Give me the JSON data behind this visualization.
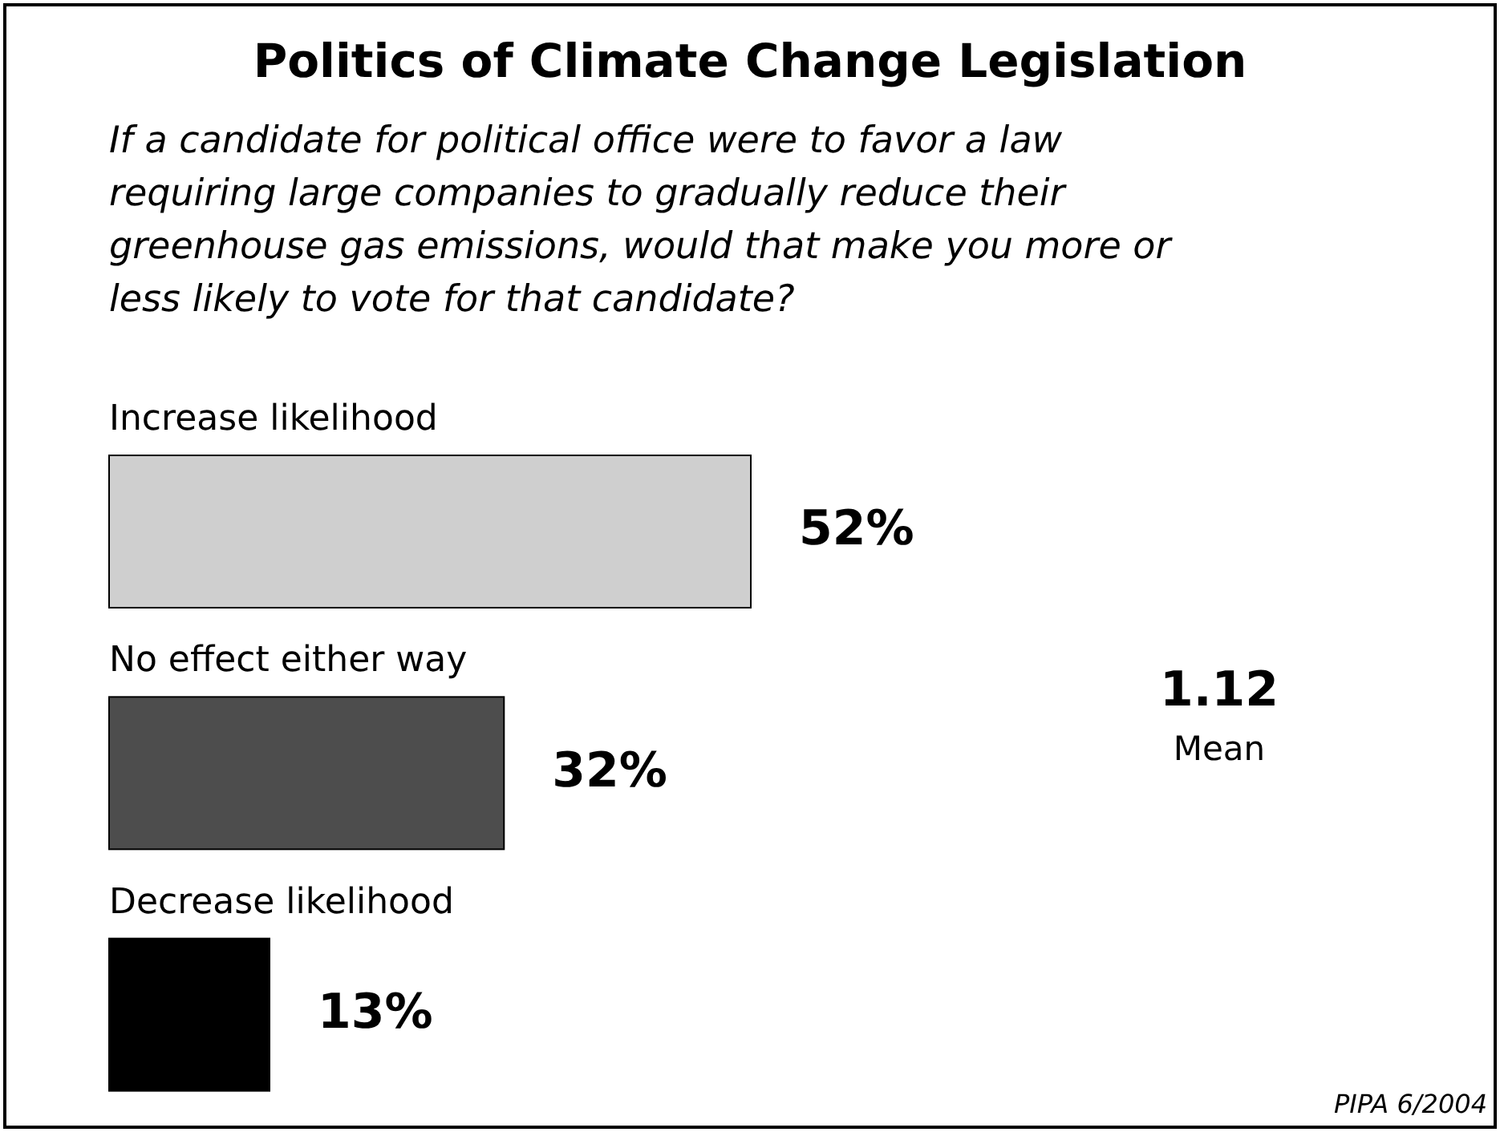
{
  "chart_data": {
    "type": "bar",
    "orientation": "horizontal",
    "title": "Politics of Climate Change Legislation",
    "subtitle": "If a candidate for political office were to favor a law requiring large companies to gradually reduce their greenhouse gas emissions, would that make you more or less likely to vote for that candidate?",
    "categories": [
      "Increase likelihood",
      "No effect either way",
      "Decrease likelihood"
    ],
    "values": [
      52,
      32,
      13
    ],
    "colors": [
      "#cfcfcf",
      "#4d4d4d",
      "#000000"
    ],
    "value_labels": [
      "52%",
      "32%",
      "13%"
    ],
    "annotations": [
      "1.12",
      "Mean",
      "PIPA 6/2004"
    ]
  }
}
